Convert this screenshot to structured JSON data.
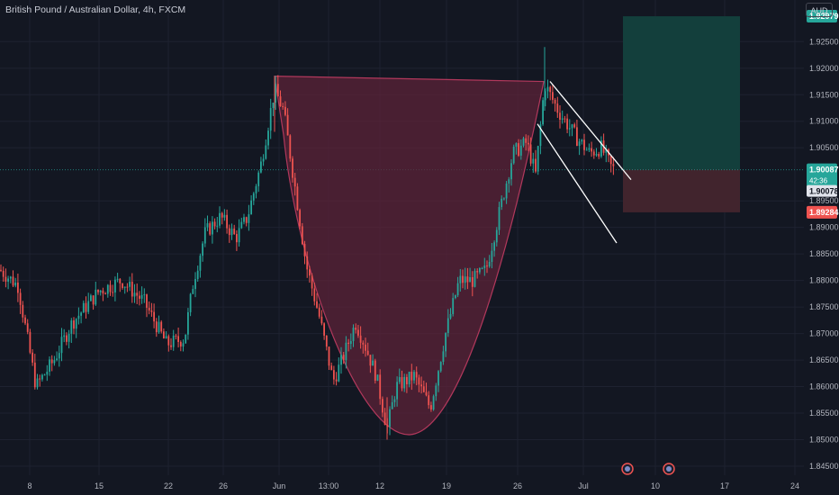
{
  "header": {
    "symbol_title": "British Pound / Australian Dollar, 4h, FXCM",
    "currency_button": "AUD"
  },
  "chart_data": {
    "type": "candlestick",
    "timeframe": "4h",
    "y_range": [
      1.8435,
      1.931
    ],
    "y_ticks": [
      "1.92500",
      "1.92000",
      "1.91500",
      "1.91000",
      "1.90500",
      "1.89500",
      "1.89000",
      "1.88500",
      "1.88000",
      "1.87500",
      "1.87000",
      "1.86500",
      "1.86000",
      "1.85500",
      "1.85000",
      "1.84500"
    ],
    "x_ticks": [
      "8",
      "15",
      "22",
      "26",
      "Jun",
      "13:00",
      "12",
      "19",
      "26",
      "Jul",
      "10",
      "17",
      "24"
    ],
    "price_labels": {
      "target": "1.92979",
      "current": "1.90087",
      "countdown": "42:36",
      "bid": "1.90078",
      "stop": "1.89284"
    },
    "annotations": [
      {
        "type": "cup_pattern",
        "rim_left_price": 1.9185,
        "rim_right_price": 1.9175,
        "bottom_price": 1.851
      },
      {
        "type": "descending_channel",
        "upper": [
          1.9175,
          1.899
        ],
        "lower": [
          1.9095,
          1.8935
        ]
      },
      {
        "type": "long_position",
        "entry": 1.90087,
        "target": 1.92979,
        "stop": 1.89284
      }
    ],
    "colors": {
      "up": "#26a69a",
      "down": "#ef5350",
      "cup_fill": "#5c2338",
      "target_zone": "#133f3c",
      "stop_zone": "#41242d",
      "background": "#131722"
    },
    "event_icons": [
      "dividend-flag-icon",
      "dividend-flag-icon"
    ]
  }
}
